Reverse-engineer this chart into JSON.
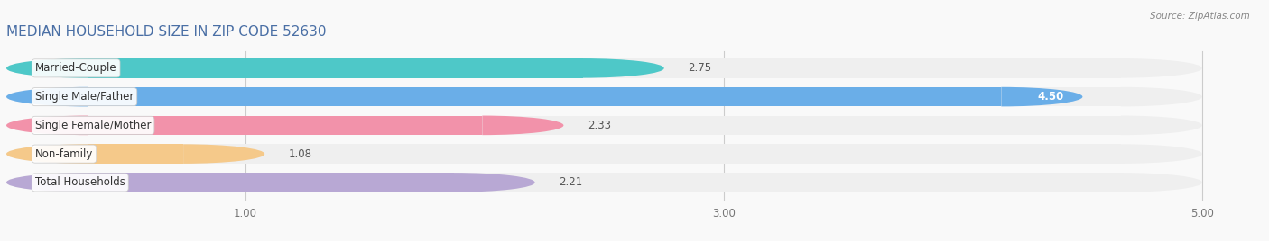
{
  "title": "MEDIAN HOUSEHOLD SIZE IN ZIP CODE 52630",
  "source": "Source: ZipAtlas.com",
  "categories": [
    "Married-Couple",
    "Single Male/Father",
    "Single Female/Mother",
    "Non-family",
    "Total Households"
  ],
  "values": [
    2.75,
    4.5,
    2.33,
    1.08,
    2.21
  ],
  "bar_colors": [
    "#4ec8c8",
    "#6aaee8",
    "#f292aa",
    "#f5c98a",
    "#b8a8d4"
  ],
  "bar_bg_color": "#efefef",
  "xlim": [
    0,
    5.2
  ],
  "xmin": 0,
  "xmax": 5.0,
  "xticks": [
    1.0,
    3.0,
    5.0
  ],
  "label_fontsize": 8.5,
  "value_fontsize": 8.5,
  "title_fontsize": 11,
  "bar_height": 0.68,
  "background_color": "#f9f9f9",
  "title_color": "#4a6fa5"
}
